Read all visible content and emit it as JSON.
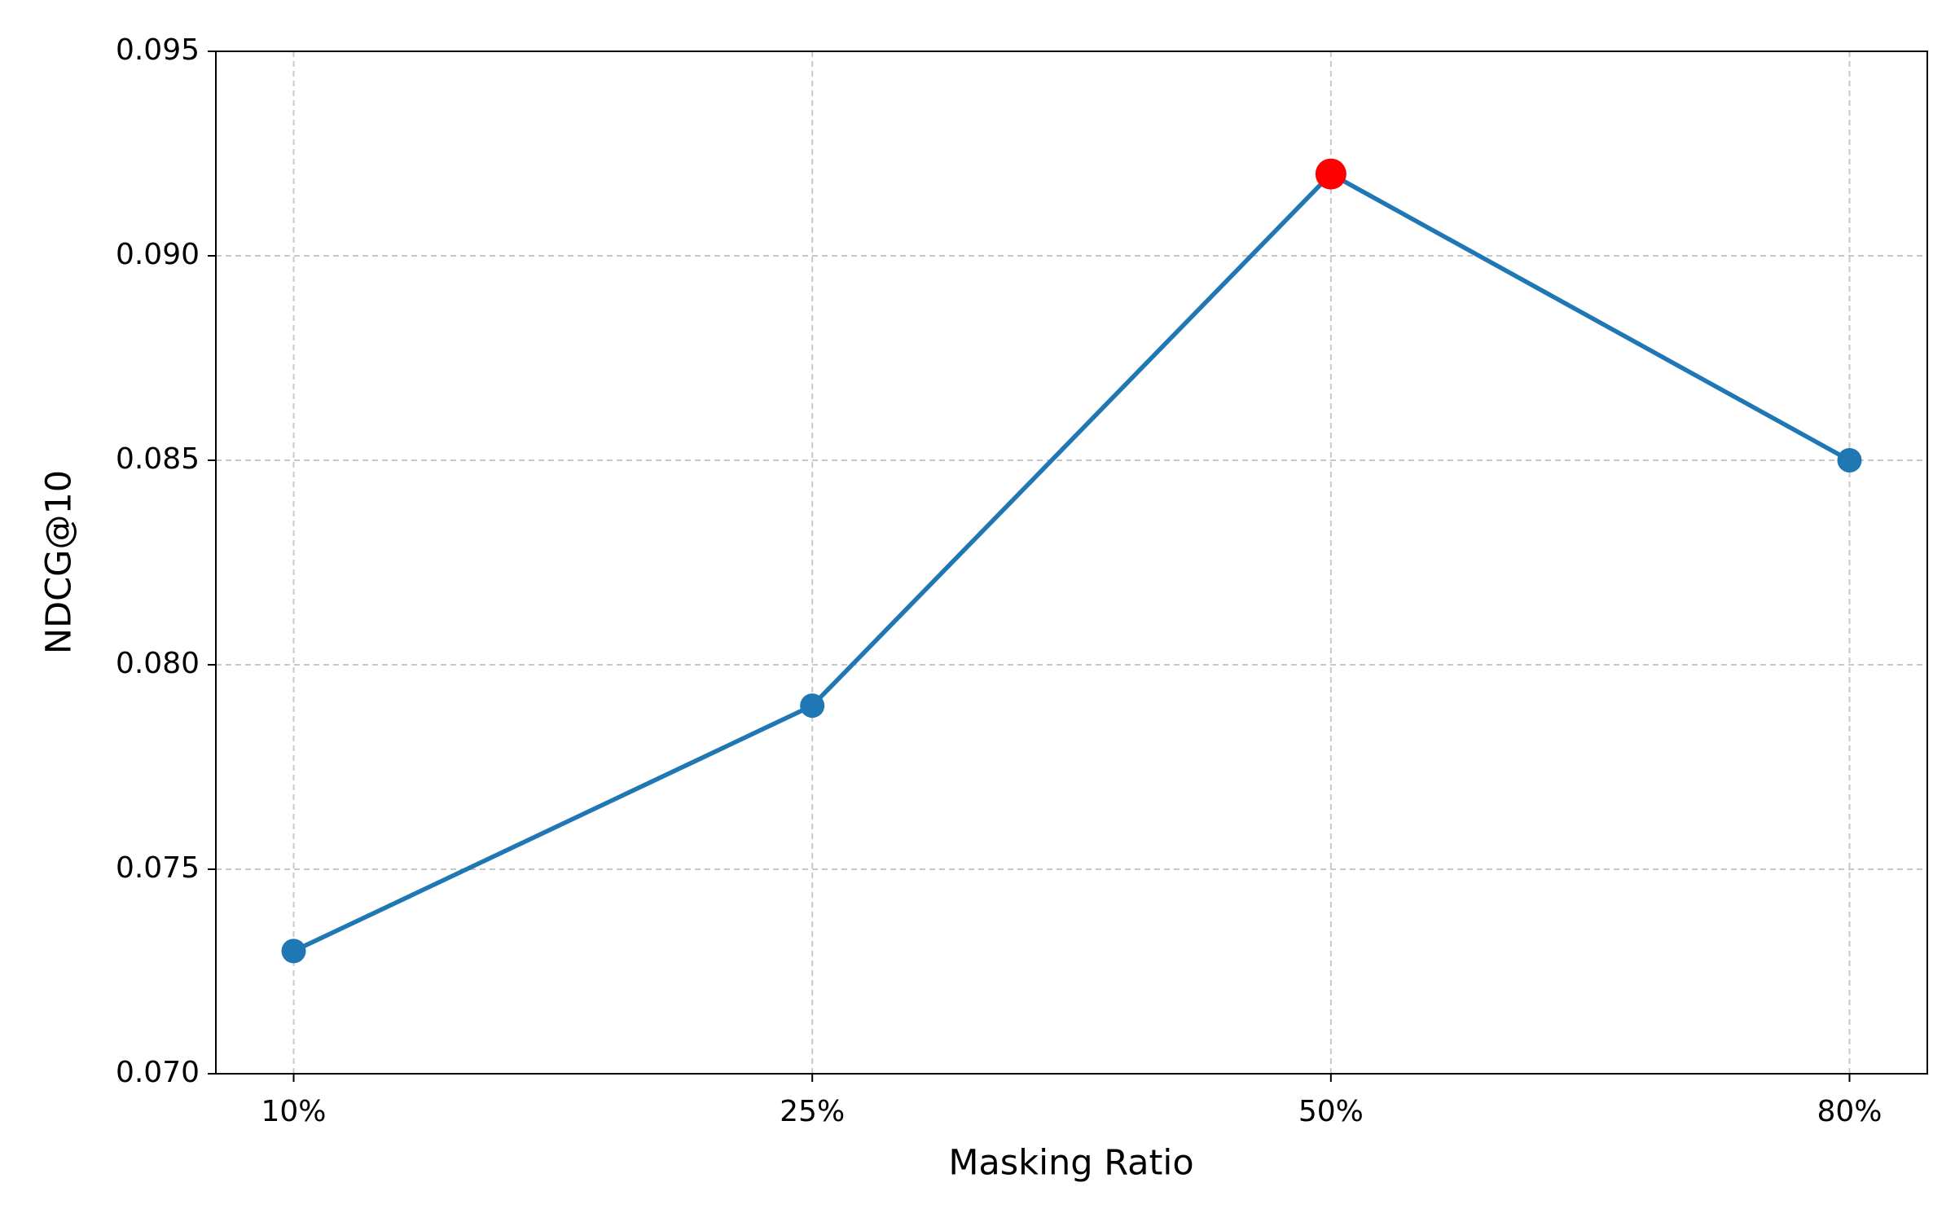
{
  "chart_data": {
    "type": "line",
    "x_label": "Masking Ratio",
    "y_label": "NDCG@10",
    "categories": [
      "10%",
      "25%",
      "50%",
      "80%"
    ],
    "series": [
      {
        "name": "NDCG@10",
        "color": "#1f77b4",
        "values": [
          0.073,
          0.079,
          0.092,
          0.085
        ],
        "marker_colors": [
          "#1f77b4",
          "#1f77b4",
          "#ff0000",
          "#1f77b4"
        ]
      }
    ],
    "ylim": [
      0.07,
      0.095
    ],
    "yticks": [
      {
        "value": 0.07,
        "label": "0.070"
      },
      0.075,
      {
        "value": 0.08,
        "label": "0.080"
      },
      0.085,
      {
        "value": 0.09,
        "label": "0.090"
      },
      0.095
    ],
    "grid": true
  }
}
